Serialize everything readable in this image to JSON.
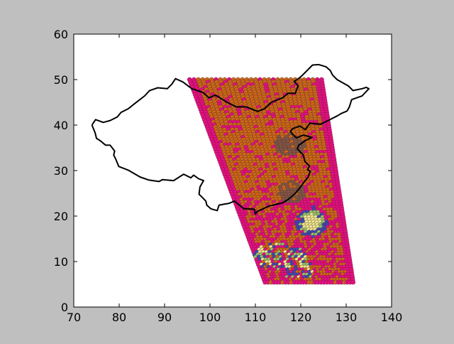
{
  "figure": {
    "background": "#bfbfbf",
    "axes_background": "#ffffff"
  },
  "chart_data": {
    "type": "scatter",
    "title": "",
    "xlabel": "",
    "ylabel": "",
    "xlim": [
      70,
      140
    ],
    "ylim": [
      0,
      60
    ],
    "xticks": [
      70,
      80,
      90,
      100,
      110,
      120,
      130,
      140
    ],
    "yticks": [
      0,
      10,
      20,
      30,
      40,
      50,
      60
    ],
    "xtick_labels": [
      "70",
      "80",
      "90",
      "100",
      "110",
      "120",
      "130",
      "140"
    ],
    "ytick_labels": [
      "0",
      "10",
      "20",
      "30",
      "40",
      "50",
      "60"
    ],
    "grid": false,
    "legend": "none",
    "boundary_outline": {
      "color": "#000000",
      "points": [
        [
          74.0,
          40.0
        ],
        [
          74.8,
          41.2
        ],
        [
          76.5,
          40.6
        ],
        [
          78.0,
          41.0
        ],
        [
          79.6,
          41.8
        ],
        [
          80.4,
          42.8
        ],
        [
          82.0,
          43.6
        ],
        [
          83.5,
          44.8
        ],
        [
          85.6,
          46.4
        ],
        [
          86.7,
          47.6
        ],
        [
          88.5,
          48.2
        ],
        [
          90.6,
          48.0
        ],
        [
          91.6,
          49.0
        ],
        [
          92.4,
          50.2
        ],
        [
          94.0,
          49.5
        ],
        [
          96.0,
          48.0
        ],
        [
          98.4,
          47.2
        ],
        [
          99.8,
          46.0
        ],
        [
          101.2,
          46.6
        ],
        [
          103.8,
          45.0
        ],
        [
          105.8,
          44.0
        ],
        [
          108.0,
          44.0
        ],
        [
          110.5,
          43.0
        ],
        [
          112.0,
          43.6
        ],
        [
          113.5,
          45.0
        ],
        [
          116.0,
          46.0
        ],
        [
          117.2,
          47.0
        ],
        [
          118.8,
          47.0
        ],
        [
          119.4,
          48.6
        ],
        [
          118.6,
          49.6
        ],
        [
          119.6,
          50.3
        ],
        [
          120.4,
          51.0
        ],
        [
          122.6,
          53.2
        ],
        [
          124.0,
          53.3
        ],
        [
          125.6,
          52.8
        ],
        [
          126.5,
          52.0
        ],
        [
          127.0,
          51.0
        ],
        [
          128.0,
          50.0
        ],
        [
          130.5,
          48.6
        ],
        [
          131.5,
          47.6
        ],
        [
          133.5,
          48.0
        ],
        [
          134.4,
          48.3
        ],
        [
          135.0,
          48.0
        ],
        [
          133.5,
          46.4
        ],
        [
          131.2,
          45.6
        ],
        [
          130.7,
          44.0
        ],
        [
          130.2,
          43.1
        ],
        [
          129.0,
          42.6
        ],
        [
          128.0,
          42.0
        ],
        [
          126.0,
          41.0
        ],
        [
          124.4,
          40.2
        ],
        [
          122.0,
          40.4
        ],
        [
          121.0,
          39.0
        ],
        [
          119.8,
          39.8
        ],
        [
          118.2,
          39.2
        ],
        [
          117.7,
          38.6
        ],
        [
          118.6,
          37.6
        ],
        [
          119.0,
          37.2
        ],
        [
          120.6,
          37.8
        ],
        [
          122.5,
          37.3
        ],
        [
          121.0,
          36.6
        ],
        [
          119.6,
          35.6
        ],
        [
          119.2,
          34.8
        ],
        [
          120.5,
          33.5
        ],
        [
          120.9,
          32.0
        ],
        [
          121.9,
          31.0
        ],
        [
          121.5,
          30.2
        ],
        [
          122.1,
          29.8
        ],
        [
          121.6,
          28.5
        ],
        [
          120.8,
          27.6
        ],
        [
          119.8,
          26.2
        ],
        [
          118.8,
          25.0
        ],
        [
          117.3,
          23.7
        ],
        [
          116.0,
          22.9
        ],
        [
          114.3,
          22.5
        ],
        [
          113.0,
          22.2
        ],
        [
          111.5,
          21.5
        ],
        [
          110.4,
          21.0
        ],
        [
          110.0,
          20.4
        ],
        [
          109.8,
          21.5
        ],
        [
          108.2,
          21.6
        ],
        [
          107.5,
          21.6
        ],
        [
          106.6,
          22.3
        ],
        [
          105.4,
          23.3
        ],
        [
          104.2,
          22.8
        ],
        [
          103.0,
          22.6
        ],
        [
          102.0,
          22.4
        ],
        [
          101.6,
          21.2
        ],
        [
          100.2,
          21.6
        ],
        [
          99.3,
          22.4
        ],
        [
          99.1,
          23.3
        ],
        [
          98.2,
          24.2
        ],
        [
          97.6,
          24.8
        ],
        [
          97.8,
          26.4
        ],
        [
          98.6,
          27.8
        ],
        [
          97.5,
          28.2
        ],
        [
          96.4,
          29.0
        ],
        [
          95.8,
          28.4
        ],
        [
          94.2,
          29.2
        ],
        [
          92.0,
          27.8
        ],
        [
          89.5,
          28.0
        ],
        [
          88.8,
          27.6
        ],
        [
          86.6,
          27.9
        ],
        [
          84.6,
          28.6
        ],
        [
          82.0,
          30.1
        ],
        [
          81.2,
          30.4
        ],
        [
          79.9,
          30.9
        ],
        [
          79.3,
          32.4
        ],
        [
          78.8,
          33.4
        ],
        [
          79.0,
          34.3
        ],
        [
          78.0,
          35.6
        ],
        [
          77.0,
          35.6
        ],
        [
          75.8,
          36.6
        ],
        [
          75.0,
          37.1
        ],
        [
          74.7,
          38.3
        ],
        [
          74.0,
          40.0
        ]
      ]
    },
    "swath": {
      "marker": "filled circle",
      "rows_lat_range": [
        5,
        50
      ],
      "left_edge": {
        "start": [
          95.5,
          50
        ],
        "end": [
          112.3,
          5
        ]
      },
      "right_edge": {
        "start": [
          124.6,
          50
        ],
        "end": [
          131.6,
          5
        ]
      },
      "colormap": "pink-orange-brown base with yellow-green and blue high values",
      "colors": {
        "pink": "#e3117f",
        "orange": "#c86a16",
        "brown": "#7d5a44",
        "yellow": "#e9e98e",
        "green": "#8fc46a",
        "blue": "#3b4bb0"
      },
      "features": [
        {
          "label": "high",
          "center": [
            122.5,
            18.5
          ],
          "radius": [
            3.5,
            3.5
          ]
        },
        {
          "label": "mixed",
          "center": [
            115.5,
            11.0
          ],
          "radius": [
            6.0,
            3.0
          ]
        },
        {
          "label": "mixed",
          "center": [
            119.5,
            8.0
          ],
          "radius": [
            4.0,
            2.0
          ]
        },
        {
          "label": "low",
          "center": [
            117.5,
            35.5
          ],
          "radius": [
            3.5,
            2.5
          ]
        },
        {
          "label": "low",
          "center": [
            118.0,
            25.0
          ],
          "radius": [
            3.0,
            2.5
          ]
        }
      ]
    }
  }
}
